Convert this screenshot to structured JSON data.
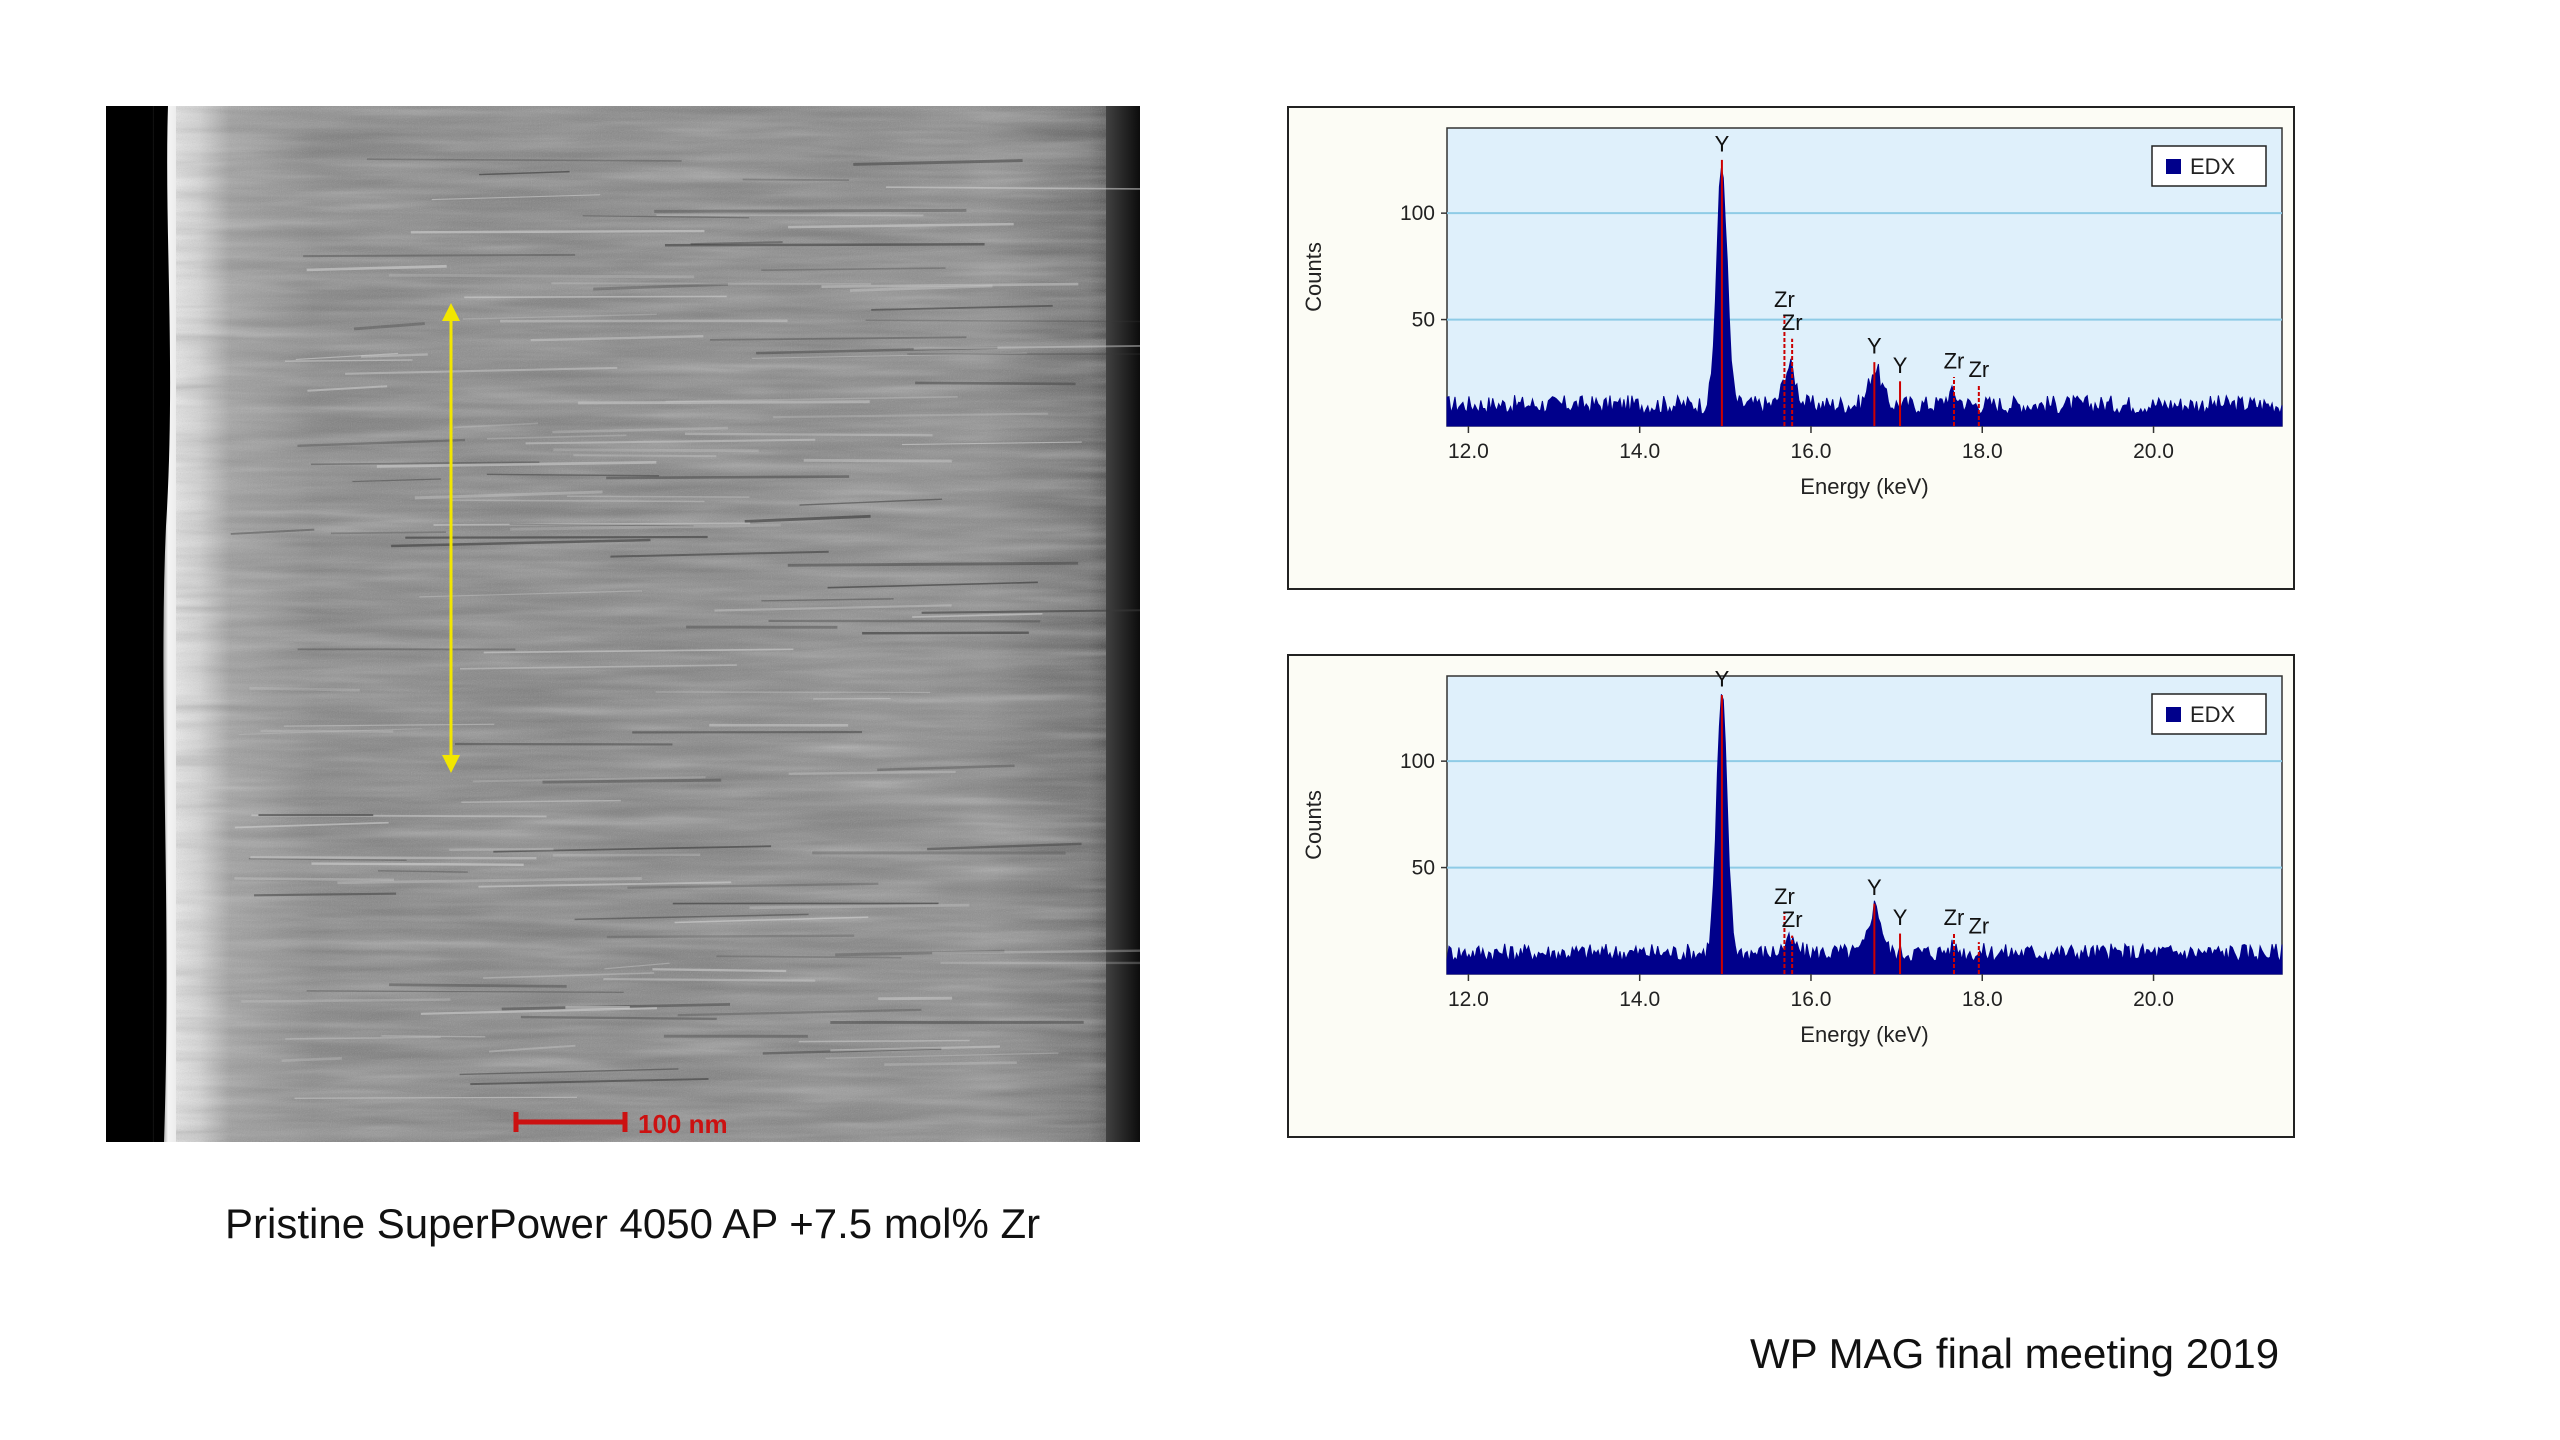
{
  "image": {
    "scale_bar_label": "100 nm"
  },
  "captions": {
    "image_caption": "Pristine SuperPower 4050 AP +7.5 mol% Zr",
    "footer": "WP MAG final meeting 2019"
  },
  "colors": {
    "plot_background": "#dff0fb",
    "spectrum_fill": "#00008b",
    "peak_marker": "#cc0000",
    "gridline": "#8ecbe6",
    "arrow": "#f2e600",
    "scale_bar": "#cc1111"
  },
  "chart_data": [
    {
      "type": "area",
      "xlabel": "Energy (keV)",
      "ylabel": "Counts",
      "xlim": [
        11.75,
        21.5
      ],
      "ylim": [
        0,
        140
      ],
      "x_ticks": [
        "12.0",
        "14.0",
        "16.0",
        "18.0",
        "20.0"
      ],
      "y_ticks": [
        "50",
        "100"
      ],
      "grid": true,
      "legend": {
        "position": "top-right",
        "entries": [
          "EDX"
        ]
      },
      "series": [
        {
          "name": "EDX",
          "baseline": 10,
          "peaks": [
            {
              "energy": 14.96,
              "counts": 122
            },
            {
              "energy": 15.75,
              "counts": 28
            },
            {
              "energy": 16.75,
              "counts": 27
            },
            {
              "energy": 17.65,
              "counts": 15
            }
          ]
        }
      ],
      "annotations": [
        {
          "label": "Y",
          "energy": 14.96,
          "counts": 129
        },
        {
          "label": "Zr",
          "energy": 15.69,
          "counts": 56
        },
        {
          "label": "Zr",
          "energy": 15.78,
          "counts": 45
        },
        {
          "label": "Y",
          "energy": 16.74,
          "counts": 34
        },
        {
          "label": "Y",
          "energy": 17.04,
          "counts": 25
        },
        {
          "label": "Zr",
          "energy": 17.67,
          "counts": 27
        },
        {
          "label": "Zr",
          "energy": 17.96,
          "counts": 23
        }
      ]
    },
    {
      "type": "area",
      "xlabel": "Energy (keV)",
      "ylabel": "Counts",
      "xlim": [
        11.75,
        21.5
      ],
      "ylim": [
        0,
        140
      ],
      "x_ticks": [
        "12.0",
        "14.0",
        "16.0",
        "18.0",
        "20.0"
      ],
      "y_ticks": [
        "50",
        "100"
      ],
      "grid": true,
      "legend": {
        "position": "top-right",
        "entries": [
          "EDX"
        ]
      },
      "series": [
        {
          "name": "EDX",
          "baseline": 10,
          "peaks": [
            {
              "energy": 14.96,
              "counts": 130
            },
            {
              "energy": 15.75,
              "counts": 15
            },
            {
              "energy": 16.75,
              "counts": 32
            },
            {
              "energy": 17.65,
              "counts": 12
            }
          ]
        }
      ],
      "annotations": [
        {
          "label": "Y",
          "energy": 14.96,
          "counts": 135
        },
        {
          "label": "Zr",
          "energy": 15.69,
          "counts": 33
        },
        {
          "label": "Zr",
          "energy": 15.78,
          "counts": 22
        },
        {
          "label": "Y",
          "energy": 16.74,
          "counts": 37
        },
        {
          "label": "Y",
          "energy": 17.04,
          "counts": 23
        },
        {
          "label": "Zr",
          "energy": 17.67,
          "counts": 23
        },
        {
          "label": "Zr",
          "energy": 17.96,
          "counts": 19
        }
      ]
    }
  ]
}
